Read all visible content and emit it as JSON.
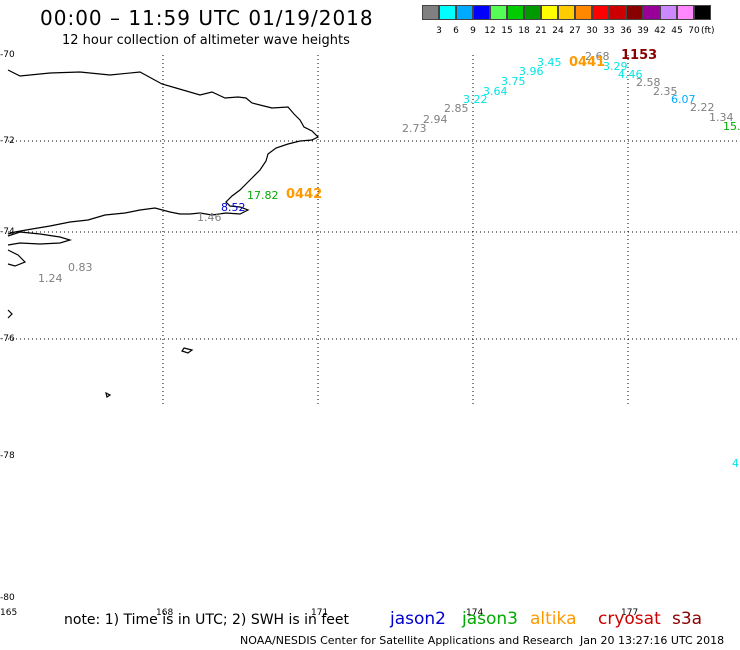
{
  "header": {
    "title": "00:00 – 11:59 UTC 01/19/2018",
    "subtitle": "12 hour collection of altimeter wave heights"
  },
  "color_scale": {
    "swatches": [
      "#808080",
      "#00ffff",
      "#00aaff",
      "#0000ff",
      "#55ff55",
      "#00cc00",
      "#009900",
      "#ffff00",
      "#ffcc00",
      "#ff8800",
      "#ff0000",
      "#cc0000",
      "#880000",
      "#990099",
      "#cc88ff",
      "#ff88ff",
      "#000000"
    ],
    "labels": [
      "3",
      "6",
      "9",
      "12",
      "15",
      "18",
      "21",
      "24",
      "27",
      "30",
      "33",
      "36",
      "39",
      "42",
      "45",
      "70"
    ],
    "unit": "(ft)"
  },
  "axes": {
    "lat_labels": [
      "-70",
      "-72",
      "-74",
      "-76",
      "-78",
      "-80"
    ],
    "lon_labels": [
      "165",
      "168",
      "171",
      "174",
      "177"
    ]
  },
  "chart_data": {
    "type": "map",
    "wave_heights": [
      {
        "value": "2.68",
        "color": "#808080"
      },
      {
        "value": "1153",
        "color": "#880000",
        "kind": "time"
      },
      {
        "value": "3.45",
        "color": "#00e5e5"
      },
      {
        "value": "0441",
        "color": "#ff9900",
        "kind": "time"
      },
      {
        "value": "3.29",
        "color": "#00e5e5"
      },
      {
        "value": "3.96",
        "color": "#00e5e5"
      },
      {
        "value": "4.46",
        "color": "#00e5e5"
      },
      {
        "value": "2.58",
        "color": "#808080"
      },
      {
        "value": "3.75",
        "color": "#00e5e5"
      },
      {
        "value": "2.35",
        "color": "#808080"
      },
      {
        "value": "3.64",
        "color": "#00e5e5"
      },
      {
        "value": "6.07",
        "color": "#00aaff"
      },
      {
        "value": "3.22",
        "color": "#00e5e5"
      },
      {
        "value": "2.85",
        "color": "#808080"
      },
      {
        "value": "2.22",
        "color": "#808080"
      },
      {
        "value": "2.94",
        "color": "#808080"
      },
      {
        "value": "1.34",
        "color": "#808080"
      },
      {
        "value": "2.73",
        "color": "#808080"
      },
      {
        "value": "15.",
        "color": "#00aa00"
      },
      {
        "value": "17.82",
        "color": "#00aa00"
      },
      {
        "value": "0442",
        "color": "#ff9900",
        "kind": "time"
      },
      {
        "value": "8.52",
        "color": "#0000cc"
      },
      {
        "value": "1.46",
        "color": "#808080"
      },
      {
        "value": "0.83",
        "color": "#808080"
      },
      {
        "value": "1.24",
        "color": "#808080"
      },
      {
        "value": "4",
        "color": "#00e5e5"
      }
    ]
  },
  "footer": {
    "note": "note: 1) Time is in UTC; 2) SWH is in feet",
    "legend": [
      {
        "name": "jason2",
        "color": "#0000cc"
      },
      {
        "name": "jason3",
        "color": "#00aa00"
      },
      {
        "name": "altika",
        "color": "#ff9900"
      },
      {
        "name": "cryosat",
        "color": "#cc0000"
      },
      {
        "name": "s3a",
        "color": "#880000"
      }
    ],
    "credit": "NOAA/NESDIS Center for Satellite Applications and Research",
    "timestamp": "Jan 20 13:27:16 UTC 2018"
  }
}
